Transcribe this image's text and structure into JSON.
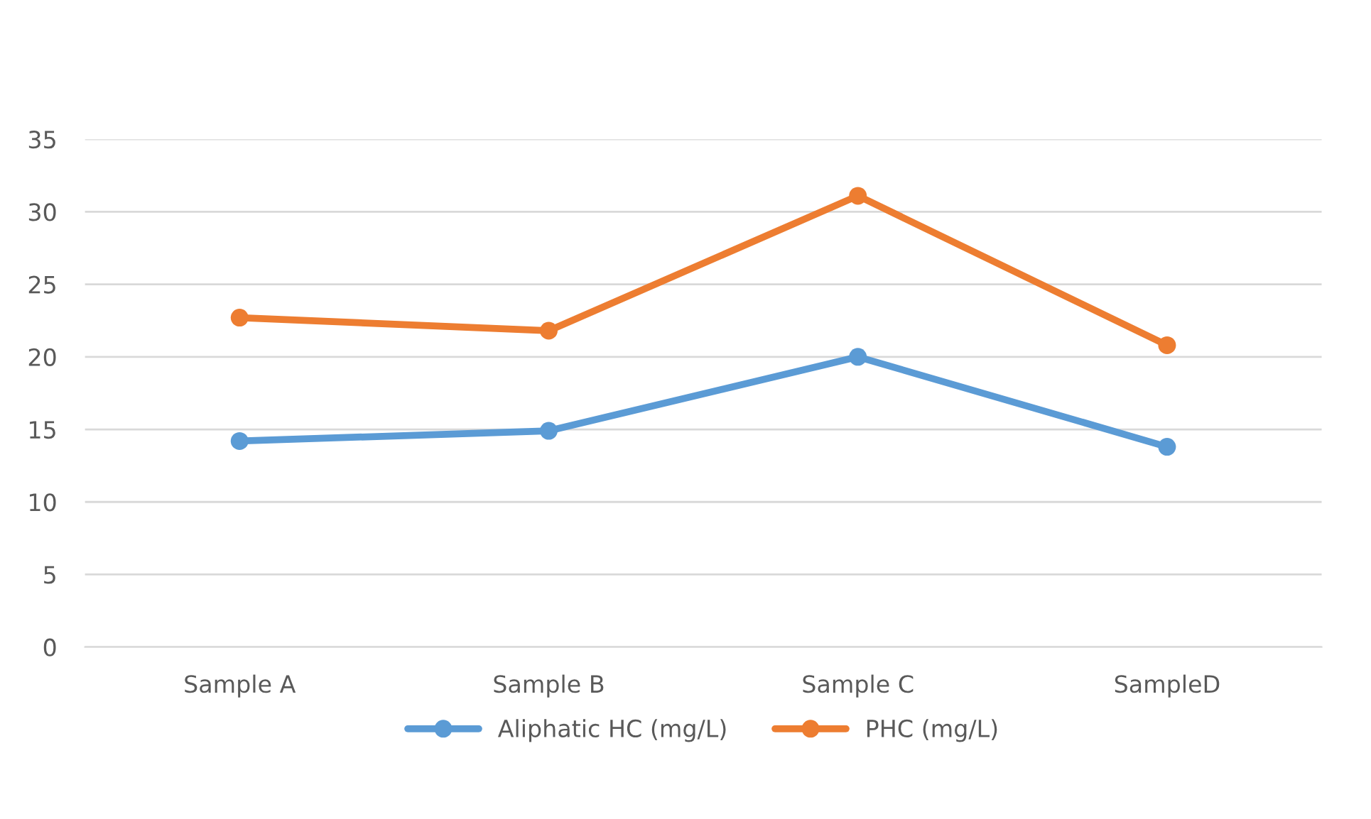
{
  "chart_data": {
    "type": "line",
    "categories": [
      "Sample A",
      "Sample B",
      "Sample C",
      "SampleD"
    ],
    "series": [
      {
        "name": "Aliphatic HC (mg/L)",
        "color": "#5b9bd5",
        "values": [
          14.2,
          14.9,
          20.0,
          13.8
        ]
      },
      {
        "name": "PHC (mg/L)",
        "color": "#ed7d31",
        "values": [
          22.7,
          21.8,
          31.1,
          20.8
        ]
      }
    ],
    "ylim": [
      0,
      35
    ],
    "yticks": [
      0,
      5,
      10,
      15,
      20,
      25,
      30,
      35
    ],
    "grid": "y",
    "legend": "bottom",
    "marker": "circle",
    "line_style": "solid"
  }
}
